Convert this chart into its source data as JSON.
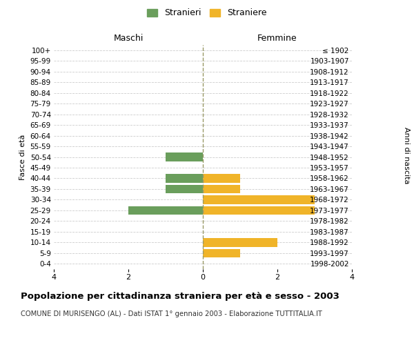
{
  "age_groups": [
    "100+",
    "95-99",
    "90-94",
    "85-89",
    "80-84",
    "75-79",
    "70-74",
    "65-69",
    "60-64",
    "55-59",
    "50-54",
    "45-49",
    "40-44",
    "35-39",
    "30-34",
    "25-29",
    "20-24",
    "15-19",
    "10-14",
    "5-9",
    "0-4"
  ],
  "birth_years": [
    "≤ 1902",
    "1903-1907",
    "1908-1912",
    "1913-1917",
    "1918-1922",
    "1923-1927",
    "1928-1932",
    "1933-1937",
    "1938-1942",
    "1943-1947",
    "1948-1952",
    "1953-1957",
    "1958-1962",
    "1963-1967",
    "1968-1972",
    "1973-1977",
    "1978-1982",
    "1983-1987",
    "1988-1992",
    "1993-1997",
    "1998-2002"
  ],
  "males": [
    0,
    0,
    0,
    0,
    0,
    0,
    0,
    0,
    0,
    0,
    1,
    0,
    1,
    1,
    0,
    2,
    0,
    0,
    0,
    0,
    0
  ],
  "females": [
    0,
    0,
    0,
    0,
    0,
    0,
    0,
    0,
    0,
    0,
    0,
    0,
    1,
    1,
    3,
    3,
    0,
    0,
    2,
    1,
    0
  ],
  "male_color": "#6a9e5c",
  "female_color": "#f0b429",
  "background_color": "#ffffff",
  "grid_color": "#cccccc",
  "title": "Popolazione per cittadinanza straniera per età e sesso - 2003",
  "subtitle": "COMUNE DI MURISENGO (AL) - Dati ISTAT 1° gennaio 2003 - Elaborazione TUTTITALIA.IT",
  "xlabel_left": "Maschi",
  "xlabel_right": "Femmine",
  "ylabel_left": "Fasce di età",
  "ylabel_right": "Anni di nascita",
  "legend_male": "Stranieri",
  "legend_female": "Straniere",
  "xlim": 4,
  "bar_height": 0.8
}
